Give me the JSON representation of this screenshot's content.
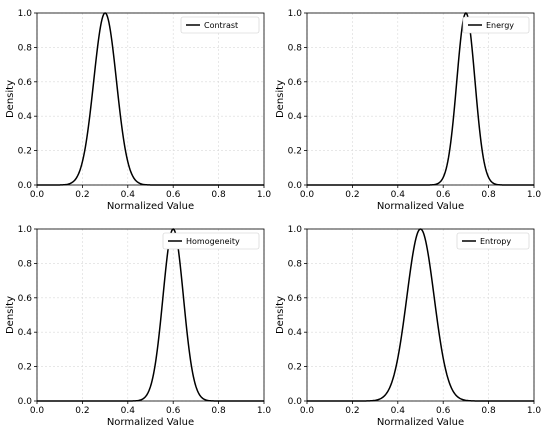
{
  "chart_data": [
    {
      "type": "line",
      "xlabel": "Normalized Value",
      "ylabel": "Density",
      "xlim": [
        0,
        1
      ],
      "ylim": [
        0,
        1
      ],
      "xticks": [
        "0.0",
        "0.2",
        "0.4",
        "0.6",
        "0.8",
        "1.0"
      ],
      "yticks": [
        "0.0",
        "0.2",
        "0.4",
        "0.6",
        "0.8",
        "1.0"
      ],
      "grid": true,
      "legend_position": "top-right",
      "series": [
        {
          "name": "Contrast",
          "mean": 0.3,
          "sd": 0.05,
          "peak": 1.0
        }
      ]
    },
    {
      "type": "line",
      "xlabel": "Normalized Value",
      "ylabel": "Density",
      "xlim": [
        0,
        1
      ],
      "ylim": [
        0,
        1
      ],
      "xticks": [
        "0.0",
        "0.2",
        "0.4",
        "0.6",
        "0.8",
        "1.0"
      ],
      "yticks": [
        "0.0",
        "0.2",
        "0.4",
        "0.6",
        "0.8",
        "1.0"
      ],
      "grid": true,
      "legend_position": "top-right",
      "series": [
        {
          "name": "Energy",
          "mean": 0.7,
          "sd": 0.04,
          "peak": 1.0
        }
      ]
    },
    {
      "type": "line",
      "xlabel": "Normalized Value",
      "ylabel": "Density",
      "xlim": [
        0,
        1
      ],
      "ylim": [
        0,
        1
      ],
      "xticks": [
        "0.0",
        "0.2",
        "0.4",
        "0.6",
        "0.8",
        "1.0"
      ],
      "yticks": [
        "0.0",
        "0.2",
        "0.4",
        "0.6",
        "0.8",
        "1.0"
      ],
      "grid": true,
      "legend_position": "top-right",
      "series": [
        {
          "name": "Homogeneity",
          "mean": 0.6,
          "sd": 0.045,
          "peak": 1.0
        }
      ]
    },
    {
      "type": "line",
      "xlabel": "Normalized Value",
      "ylabel": "Density",
      "xlim": [
        0,
        1
      ],
      "ylim": [
        0,
        1
      ],
      "xticks": [
        "0.0",
        "0.2",
        "0.4",
        "0.6",
        "0.8",
        "1.0"
      ],
      "yticks": [
        "0.0",
        "0.2",
        "0.4",
        "0.6",
        "0.8",
        "1.0"
      ],
      "grid": true,
      "legend_position": "top-right",
      "series": [
        {
          "name": "Entropy",
          "mean": 0.5,
          "sd": 0.06,
          "peak": 1.0
        }
      ]
    }
  ]
}
